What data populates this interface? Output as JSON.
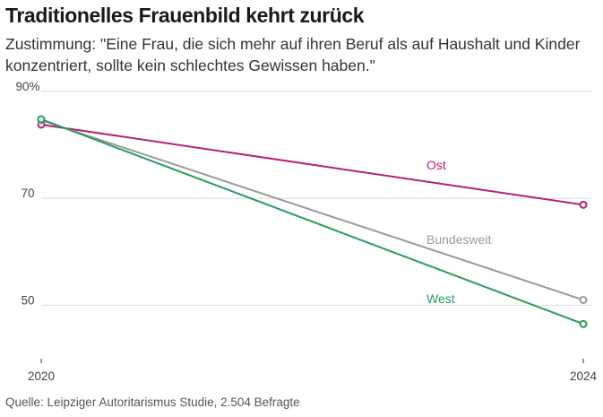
{
  "title": "Traditionelles Frauenbild kehrt zurück",
  "subtitle": "Zustimmung: \"Eine Frau, die sich mehr auf ihren Beruf als auf Haushalt und Kinder konzentriert, sollte kein schlechtes Gewissen haben.\"",
  "source": "Quelle: Leipziger Autoritarismus Studie, 2.504 Befragte",
  "chart_data": {
    "type": "line",
    "title": "Traditionelles Frauenbild kehrt zurück",
    "subtitle": "Zustimmung: \"Eine Frau, die sich mehr auf ihren Beruf als auf Haushalt und Kinder konzentriert, sollte kein schlechtes Gewissen haben.\"",
    "x": [
      "2020",
      "2024"
    ],
    "xticks": [
      "2020",
      "2024"
    ],
    "yticks": [
      {
        "value": 90,
        "label": "90%"
      },
      {
        "value": 70,
        "label": "70"
      },
      {
        "value": 50,
        "label": "50"
      }
    ],
    "ylim": [
      40,
      90
    ],
    "grid": true,
    "legend": "inline labels",
    "series": [
      {
        "name": "Ost",
        "values": [
          83.8,
          68.8
        ],
        "color": "#b5207a"
      },
      {
        "name": "Bundesweit",
        "values": [
          84.6,
          51.0
        ],
        "color": "#9a9a9a"
      },
      {
        "name": "West",
        "values": [
          84.8,
          46.5
        ],
        "color": "#2a9a5e"
      }
    ]
  }
}
